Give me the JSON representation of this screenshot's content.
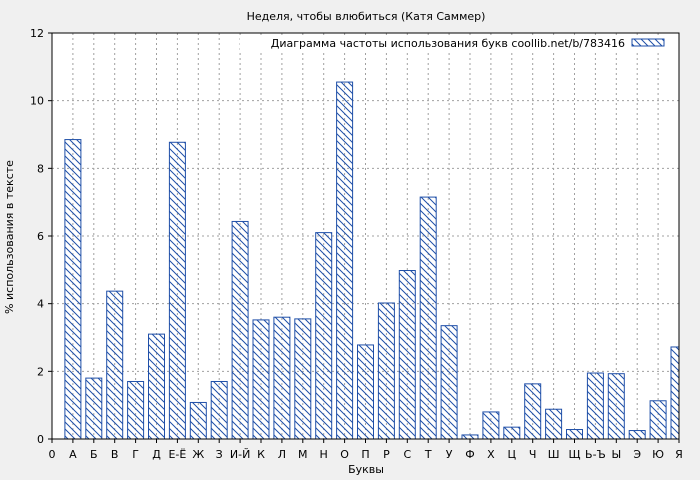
{
  "chart_data": {
    "type": "bar",
    "title": "Неделя, чтобы влюбиться (Катя Саммер)",
    "xlabel": "Буквы",
    "ylabel": "% использования в тексте",
    "ylim": [
      0,
      12
    ],
    "yticks": [
      "0",
      "2",
      "4",
      "6",
      "8",
      "10",
      "12"
    ],
    "grid": true,
    "legend_position": "top-right",
    "x_tick_labels": [
      "0",
      "А",
      "Б",
      "В",
      "Г",
      "Д",
      "Е-Ё",
      "Ж",
      "З",
      "И-Й",
      "К",
      "Л",
      "М",
      "Н",
      "О",
      "П",
      "Р",
      "С",
      "Т",
      "У",
      "Ф",
      "Х",
      "Ц",
      "Ч",
      "Ш",
      "Щ",
      "Ь-Ъ",
      "Ы",
      "Э",
      "Ю",
      "Я"
    ],
    "categories": [
      "А",
      "Б",
      "В",
      "Г",
      "Д",
      "Е-Ё",
      "Ж",
      "З",
      "И-Й",
      "К",
      "Л",
      "М",
      "Н",
      "О",
      "П",
      "Р",
      "С",
      "Т",
      "У",
      "Ф",
      "Х",
      "Ц",
      "Ч",
      "Ш",
      "Щ",
      "Ь-Ъ",
      "Ы",
      "Э",
      "Ю",
      "Я"
    ],
    "series": [
      {
        "name": "Диаграмма частоты использования букв coollib.net/b/783416",
        "color": "#1f4fa8",
        "pattern": "diagonal-hatch",
        "values": [
          8.85,
          1.8,
          4.37,
          1.7,
          3.1,
          8.77,
          1.08,
          1.7,
          6.43,
          3.52,
          3.6,
          3.55,
          6.1,
          10.55,
          2.78,
          4.02,
          4.98,
          7.15,
          3.35,
          0.12,
          0.8,
          0.35,
          1.63,
          0.88,
          0.28,
          1.95,
          1.93,
          0.25,
          1.13,
          2.72
        ]
      }
    ]
  }
}
